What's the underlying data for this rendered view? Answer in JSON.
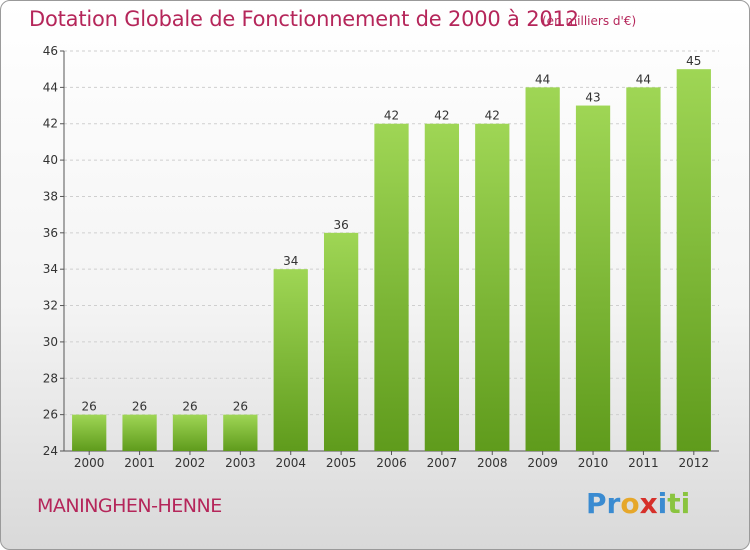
{
  "chart_data": {
    "type": "bar",
    "title": "Dotation Globale de Fonctionnement de 2000 à 2012",
    "subtitle": "(en milliers d'€)",
    "categories": [
      "2000",
      "2001",
      "2002",
      "2003",
      "2004",
      "2005",
      "2006",
      "2007",
      "2008",
      "2009",
      "2010",
      "2011",
      "2012"
    ],
    "values": [
      26,
      26,
      26,
      26,
      34,
      36,
      42,
      42,
      42,
      44,
      43,
      44,
      45
    ],
    "ylim": [
      24,
      46
    ],
    "yticks": [
      24,
      26,
      28,
      30,
      32,
      34,
      36,
      38,
      40,
      42,
      44,
      46
    ],
    "grid": true,
    "bar_color": "#7cbc36",
    "bar_color_top": "#9fd655"
  },
  "commune": "MANINGHEN-HENNE",
  "brand": {
    "letters": [
      "P",
      "r",
      "o",
      "x",
      "i",
      "t",
      "i"
    ],
    "colors": [
      "#3a8bd1",
      "#3a8bd1",
      "#e6a72a",
      "#d6302a",
      "#3a8bd1",
      "#8ac43f",
      "#8ac43f"
    ]
  },
  "accent_color": "#b5265a"
}
